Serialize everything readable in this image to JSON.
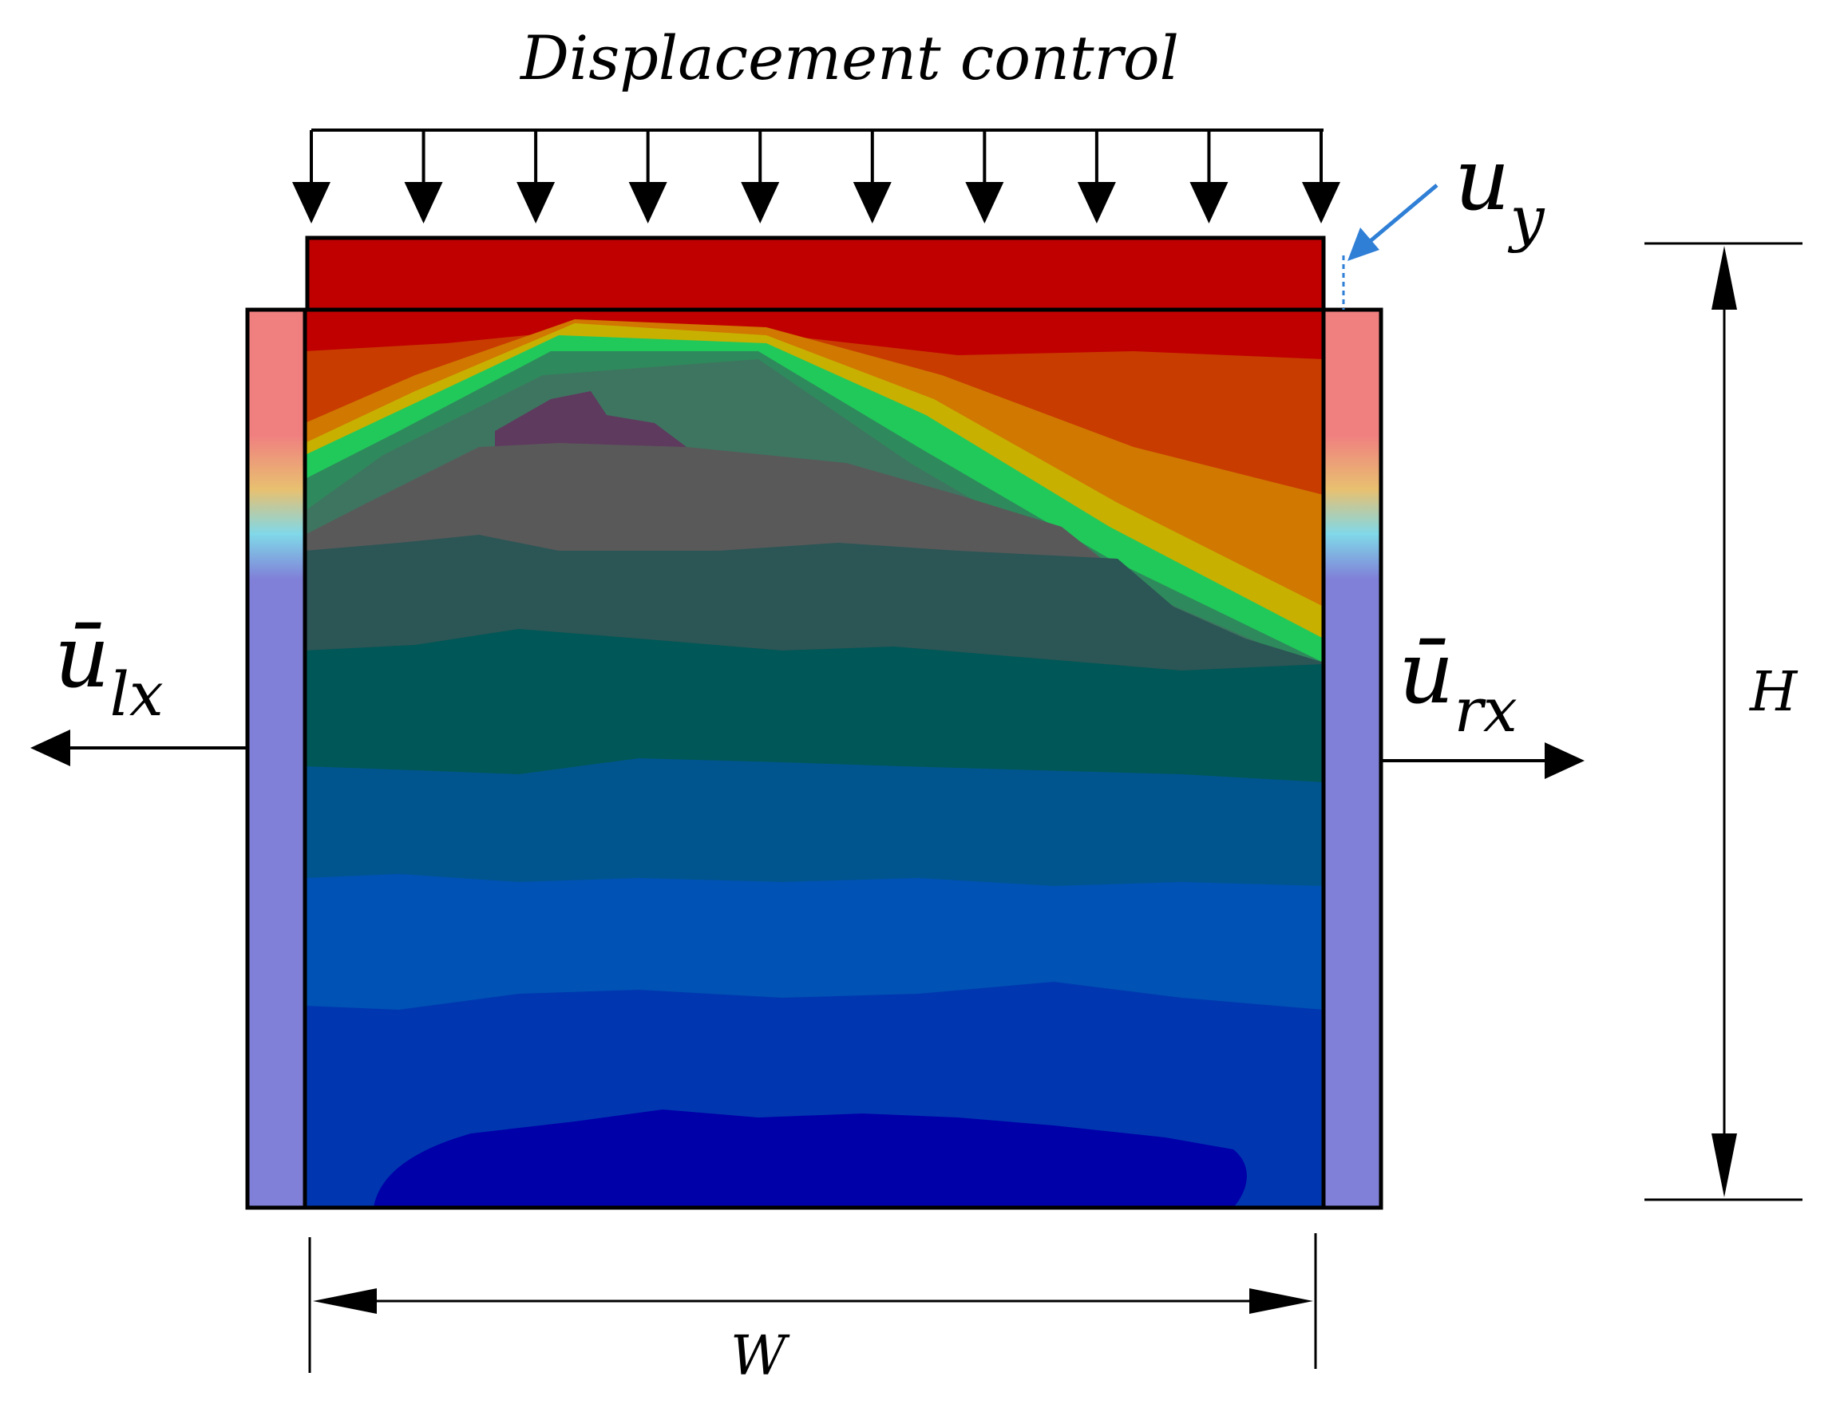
{
  "diagram": {
    "title": "Displacement control",
    "labels": {
      "uy_main": "u",
      "uy_sub": "y",
      "ulx_main": "ū",
      "ulx_sub": "lx",
      "urx_main": "ū",
      "urx_sub": "rx",
      "height": "H",
      "width": "W"
    },
    "colors": {
      "loading_plate": "#c00000",
      "side_boundary_top": "#f08080",
      "side_boundary_bottom": "#8080d8",
      "arrow_blue": "#2f7fd6",
      "contour_levels": [
        "#0000a8",
        "#0037b0",
        "#0052b4",
        "#00558f",
        "#005757",
        "#2c5555",
        "#595959",
        "#5e3a5e",
        "#2eaa4c",
        "#21c95a",
        "#e0c000",
        "#d07800",
        "#c83c00",
        "#c00000"
      ]
    }
  }
}
